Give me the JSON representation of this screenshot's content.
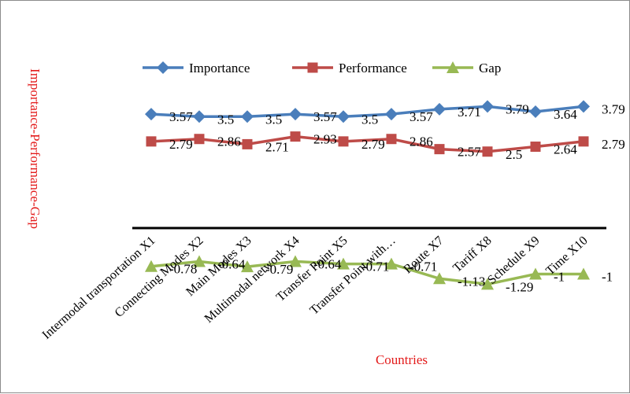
{
  "chart_data": {
    "type": "line",
    "xlabel": "Countries",
    "ylabel": "Importance-Performance-Gap",
    "categories": [
      "Intermodal transportation X1",
      "Connecting Modes X2",
      "Main Modes X3",
      "Multimodal network X4",
      "Transfer Point X5",
      "Transfer Point with…",
      "Route X7",
      "Tariff X8",
      "Schedule X9",
      "Time X10"
    ],
    "legend_position": "top",
    "grid": false,
    "series": [
      {
        "name": "Importance",
        "color": "#4a7ebb",
        "marker": "diamond",
        "values": [
          3.57,
          3.5,
          3.5,
          3.57,
          3.5,
          3.57,
          3.71,
          3.79,
          3.64,
          3.79
        ],
        "labels": [
          "3.57",
          "3.5",
          "3.5",
          "3.57",
          "3.5",
          "3.57",
          "3.71",
          "3.79",
          "3.64",
          "3.79"
        ]
      },
      {
        "name": "Performance",
        "color": "#be4b48",
        "marker": "square",
        "values": [
          2.79,
          2.86,
          2.71,
          2.93,
          2.79,
          2.86,
          2.57,
          2.5,
          2.64,
          2.79
        ],
        "labels": [
          "2.79",
          "2.86",
          "2.71",
          "2.93",
          "2.79",
          "2.86",
          "2.57",
          "2.5",
          "2.64",
          "2.79"
        ]
      },
      {
        "name": "Gap",
        "color": "#98b954",
        "marker": "triangle",
        "values": [
          -0.78,
          -0.64,
          -0.79,
          -0.64,
          -0.71,
          -0.71,
          -1.13,
          -1.29,
          -1,
          -1
        ],
        "labels": [
          "-0.78",
          "-0.64",
          "-0.79",
          "-0.64",
          "-0.71",
          "-0.71",
          "-1.13",
          "-1.29",
          "-1",
          "-1"
        ]
      }
    ]
  }
}
